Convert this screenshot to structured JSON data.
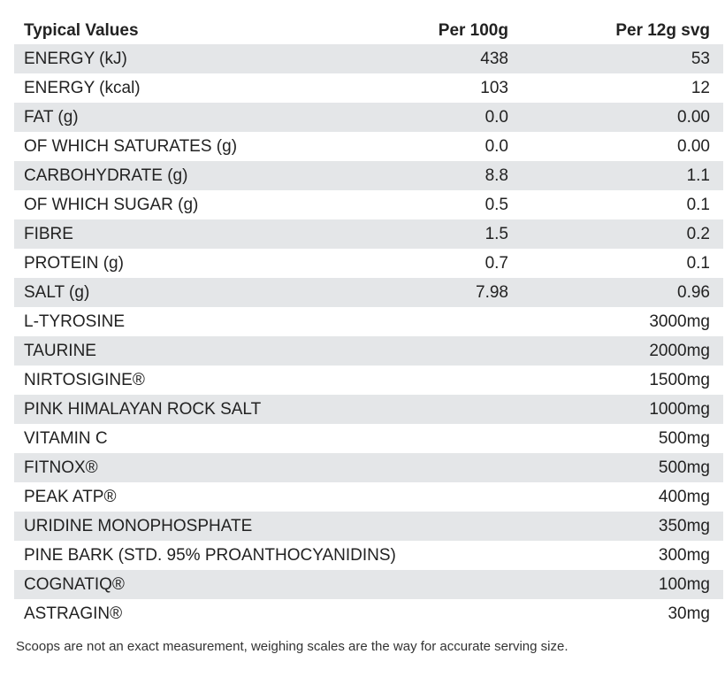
{
  "table": {
    "header": [
      "Typical Values",
      "Per 100g",
      "Per 12g svg"
    ],
    "rows": [
      {
        "name": "ENERGY (kJ)",
        "per_100g": "438",
        "per_serving": "53"
      },
      {
        "name": "ENERGY (kcal)",
        "per_100g": "103",
        "per_serving": "12"
      },
      {
        "name": "FAT (g)",
        "per_100g": "0.0",
        "per_serving": "0.00"
      },
      {
        "name": "OF WHICH SATURATES (g)",
        "per_100g": "0.0",
        "per_serving": "0.00"
      },
      {
        "name": "CARBOHYDRATE (g)",
        "per_100g": "8.8",
        "per_serving": "1.1"
      },
      {
        "name": "OF WHICH SUGAR (g)",
        "per_100g": "0.5",
        "per_serving": "0.1"
      },
      {
        "name": "FIBRE",
        "per_100g": "1.5",
        "per_serving": "0.2"
      },
      {
        "name": "PROTEIN (g)",
        "per_100g": "0.7",
        "per_serving": "0.1"
      },
      {
        "name": "SALT (g)",
        "per_100g": "7.98",
        "per_serving": "0.96"
      },
      {
        "name": "L-TYROSINE",
        "per_serving": "3000mg"
      },
      {
        "name": "TAURINE",
        "per_serving": "2000mg"
      },
      {
        "name": "NIRTOSIGINE®",
        "per_serving": "1500mg"
      },
      {
        "name": "PINK HIMALAYAN ROCK SALT",
        "per_serving": "1000mg"
      },
      {
        "name": "VITAMIN C",
        "per_serving": "500mg"
      },
      {
        "name": "FITNOX®",
        "per_serving": "500mg"
      },
      {
        "name": "PEAK ATP®",
        "per_serving": "400mg"
      },
      {
        "name": "URIDINE MONOPHOSPHATE",
        "per_serving": "350mg"
      },
      {
        "name": "PINE BARK (STD. 95% PROANTHOCYANIDINS)",
        "per_serving": "300mg"
      },
      {
        "name": "COGNATIQ®",
        "per_serving": "100mg"
      },
      {
        "name": "ASTRAGIN®",
        "per_serving": "30mg"
      }
    ]
  },
  "footnote": "Scoops are not an exact measurement, weighing scales are the way for accurate serving size."
}
